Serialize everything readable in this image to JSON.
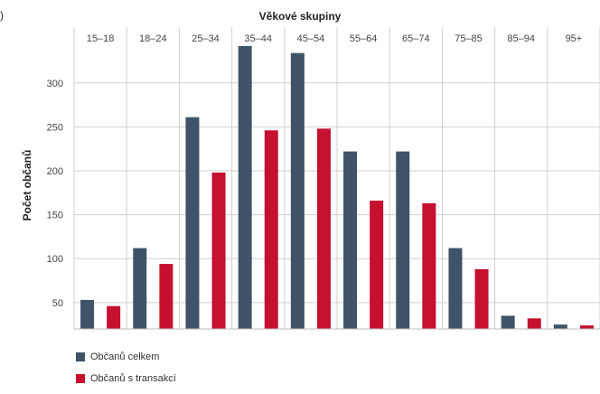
{
  "stray_char": ")",
  "colors": {
    "series1": "#3f5468",
    "series2": "#c5102f",
    "grid": "#cfcfcf"
  },
  "chart_data": {
    "type": "bar",
    "title": "Věkové skupiny",
    "xlabel": "Věkové skupiny",
    "ylabel": "Počet občanů",
    "categories": [
      "15–18",
      "18–24",
      "25–34",
      "35–44",
      "45–54",
      "55–64",
      "65–74",
      "75–85",
      "85–94",
      "95+"
    ],
    "yticks": [
      50,
      100,
      150,
      200,
      250,
      300
    ],
    "ylim": [
      20,
      345
    ],
    "grid": true,
    "legend_position": "bottom-left",
    "series": [
      {
        "name": "Občanů celkem",
        "values": [
          53,
          112,
          261,
          342,
          334,
          222,
          222,
          112,
          35,
          25
        ]
      },
      {
        "name": "Občanů s transakcí",
        "values": [
          46,
          94,
          198,
          246,
          248,
          166,
          163,
          88,
          32,
          24
        ]
      }
    ]
  }
}
